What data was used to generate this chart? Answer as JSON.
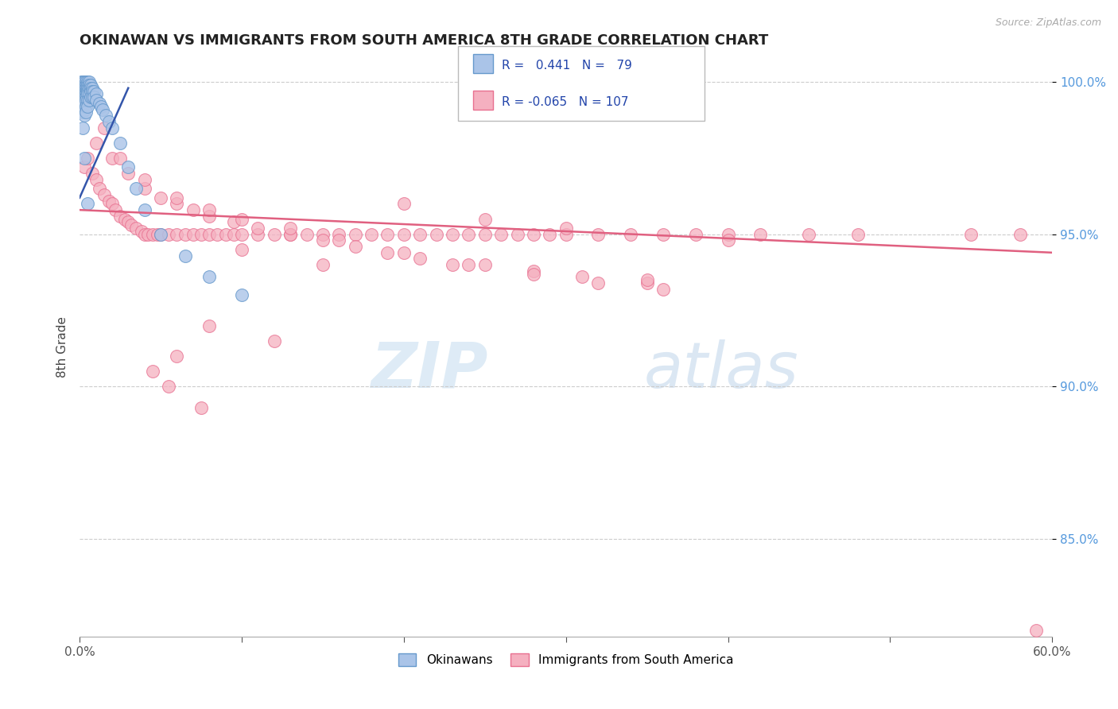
{
  "title": "OKINAWAN VS IMMIGRANTS FROM SOUTH AMERICA 8TH GRADE CORRELATION CHART",
  "source": "Source: ZipAtlas.com",
  "ylabel": "8th Grade",
  "xmin": 0.0,
  "xmax": 0.6,
  "ymin": 0.818,
  "ymax": 1.008,
  "yticks": [
    0.85,
    0.9,
    0.95,
    1.0
  ],
  "ytick_labels": [
    "85.0%",
    "90.0%",
    "95.0%",
    "100.0%"
  ],
  "blue_R": 0.441,
  "blue_N": 79,
  "pink_R": -0.065,
  "pink_N": 107,
  "blue_color": "#aac4e8",
  "pink_color": "#f5b0c0",
  "blue_edge": "#6699cc",
  "pink_edge": "#e87090",
  "blue_trend_color": "#3355aa",
  "pink_trend_color": "#e06080",
  "watermark_zip": "ZIP",
  "watermark_atlas": "atlas",
  "legend_label_blue": "Okinawans",
  "legend_label_pink": "Immigrants from South America",
  "blue_x": [
    0.001,
    0.001,
    0.001,
    0.001,
    0.001,
    0.001,
    0.001,
    0.001,
    0.001,
    0.001,
    0.002,
    0.002,
    0.002,
    0.002,
    0.002,
    0.002,
    0.002,
    0.002,
    0.002,
    0.002,
    0.003,
    0.003,
    0.003,
    0.003,
    0.003,
    0.003,
    0.003,
    0.003,
    0.003,
    0.003,
    0.004,
    0.004,
    0.004,
    0.004,
    0.004,
    0.004,
    0.004,
    0.004,
    0.004,
    0.005,
    0.005,
    0.005,
    0.005,
    0.005,
    0.005,
    0.005,
    0.006,
    0.006,
    0.006,
    0.006,
    0.006,
    0.007,
    0.007,
    0.007,
    0.007,
    0.008,
    0.008,
    0.008,
    0.009,
    0.009,
    0.01,
    0.01,
    0.012,
    0.013,
    0.014,
    0.016,
    0.018,
    0.02,
    0.025,
    0.03,
    0.035,
    0.04,
    0.05,
    0.065,
    0.08,
    0.1,
    0.005,
    0.003,
    0.002
  ],
  "blue_y": [
    1.0,
    0.999,
    0.998,
    0.997,
    0.996,
    0.995,
    0.994,
    0.993,
    0.992,
    0.991,
    1.0,
    0.999,
    0.998,
    0.997,
    0.996,
    0.995,
    0.994,
    0.993,
    0.992,
    0.99,
    1.0,
    0.999,
    0.998,
    0.997,
    0.996,
    0.995,
    0.994,
    0.993,
    0.991,
    0.989,
    1.0,
    0.999,
    0.998,
    0.997,
    0.996,
    0.995,
    0.994,
    0.992,
    0.99,
    1.0,
    0.999,
    0.998,
    0.997,
    0.996,
    0.994,
    0.992,
    1.0,
    0.999,
    0.998,
    0.996,
    0.994,
    0.999,
    0.998,
    0.997,
    0.995,
    0.998,
    0.997,
    0.995,
    0.997,
    0.995,
    0.996,
    0.994,
    0.993,
    0.992,
    0.991,
    0.989,
    0.987,
    0.985,
    0.98,
    0.972,
    0.965,
    0.958,
    0.95,
    0.943,
    0.936,
    0.93,
    0.96,
    0.975,
    0.985
  ],
  "pink_x": [
    0.003,
    0.005,
    0.008,
    0.01,
    0.012,
    0.015,
    0.018,
    0.02,
    0.022,
    0.025,
    0.028,
    0.03,
    0.032,
    0.035,
    0.038,
    0.04,
    0.042,
    0.045,
    0.048,
    0.05,
    0.055,
    0.06,
    0.065,
    0.07,
    0.075,
    0.08,
    0.085,
    0.09,
    0.095,
    0.1,
    0.11,
    0.12,
    0.13,
    0.14,
    0.15,
    0.16,
    0.17,
    0.18,
    0.19,
    0.2,
    0.21,
    0.22,
    0.23,
    0.24,
    0.25,
    0.26,
    0.27,
    0.28,
    0.29,
    0.3,
    0.32,
    0.34,
    0.36,
    0.38,
    0.4,
    0.42,
    0.45,
    0.48,
    0.55,
    0.58,
    0.01,
    0.02,
    0.03,
    0.04,
    0.05,
    0.06,
    0.07,
    0.08,
    0.095,
    0.11,
    0.13,
    0.15,
    0.17,
    0.19,
    0.21,
    0.23,
    0.25,
    0.28,
    0.31,
    0.35,
    0.015,
    0.025,
    0.04,
    0.06,
    0.08,
    0.1,
    0.13,
    0.16,
    0.2,
    0.24,
    0.28,
    0.32,
    0.36,
    0.2,
    0.25,
    0.3,
    0.4,
    0.15,
    0.35,
    0.1,
    0.08,
    0.12,
    0.06,
    0.045,
    0.055,
    0.075,
    0.59
  ],
  "pink_y": [
    0.972,
    0.975,
    0.97,
    0.968,
    0.965,
    0.963,
    0.961,
    0.96,
    0.958,
    0.956,
    0.955,
    0.954,
    0.953,
    0.952,
    0.951,
    0.95,
    0.95,
    0.95,
    0.95,
    0.95,
    0.95,
    0.95,
    0.95,
    0.95,
    0.95,
    0.95,
    0.95,
    0.95,
    0.95,
    0.95,
    0.95,
    0.95,
    0.95,
    0.95,
    0.95,
    0.95,
    0.95,
    0.95,
    0.95,
    0.95,
    0.95,
    0.95,
    0.95,
    0.95,
    0.95,
    0.95,
    0.95,
    0.95,
    0.95,
    0.95,
    0.95,
    0.95,
    0.95,
    0.95,
    0.95,
    0.95,
    0.95,
    0.95,
    0.95,
    0.95,
    0.98,
    0.975,
    0.97,
    0.965,
    0.962,
    0.96,
    0.958,
    0.956,
    0.954,
    0.952,
    0.95,
    0.948,
    0.946,
    0.944,
    0.942,
    0.94,
    0.94,
    0.938,
    0.936,
    0.934,
    0.985,
    0.975,
    0.968,
    0.962,
    0.958,
    0.955,
    0.952,
    0.948,
    0.944,
    0.94,
    0.937,
    0.934,
    0.932,
    0.96,
    0.955,
    0.952,
    0.948,
    0.94,
    0.935,
    0.945,
    0.92,
    0.915,
    0.91,
    0.905,
    0.9,
    0.893,
    0.82
  ],
  "pink_trend_x0": 0.0,
  "pink_trend_y0": 0.958,
  "pink_trend_x1": 0.6,
  "pink_trend_y1": 0.944,
  "blue_trend_x0": 0.0,
  "blue_trend_y0": 0.962,
  "blue_trend_x1": 0.03,
  "blue_trend_y1": 0.998
}
